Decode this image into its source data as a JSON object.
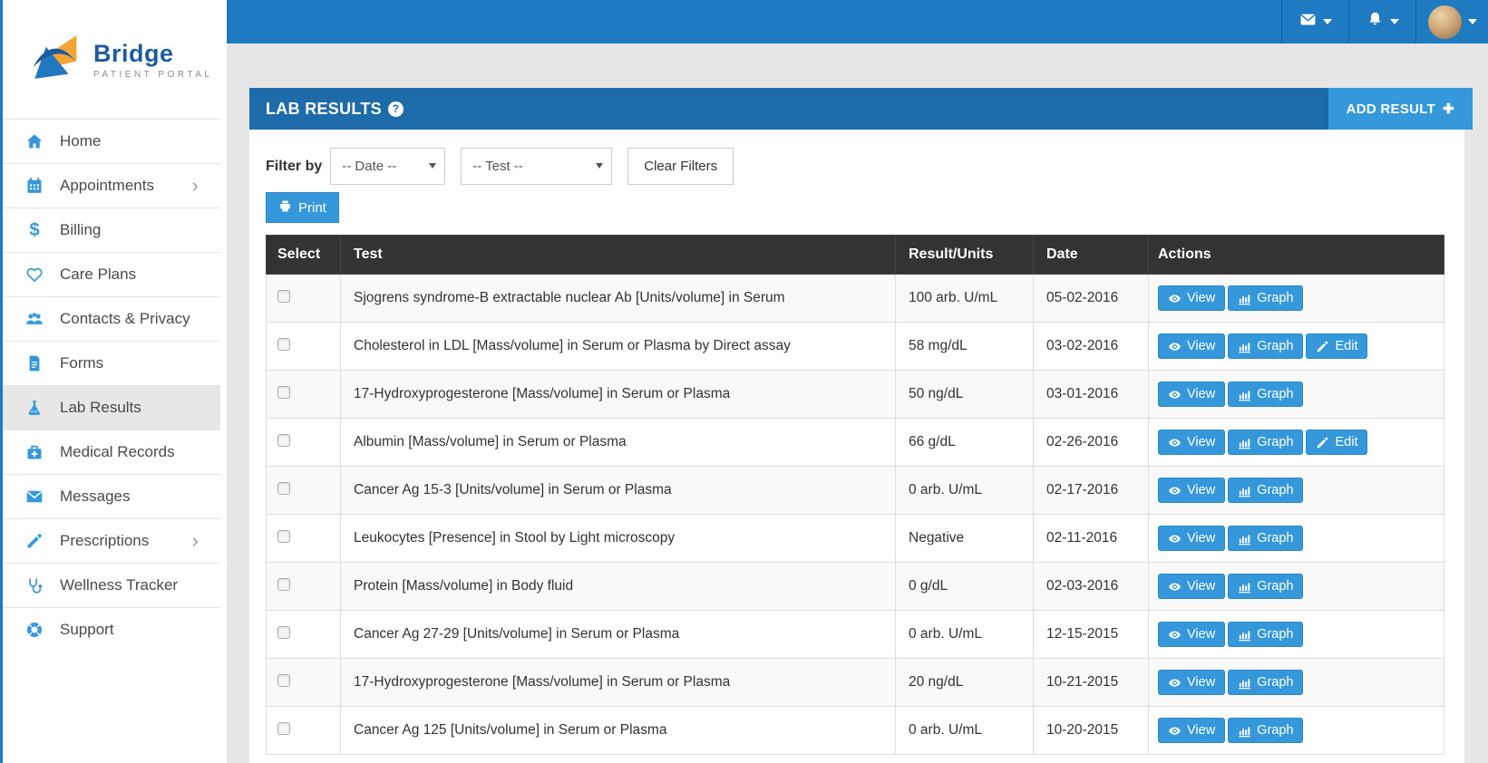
{
  "brand": {
    "name": "Bridge",
    "tagline": "PATIENT PORTAL"
  },
  "topbar": {
    "items": [
      {
        "name": "messages-menu",
        "icon": "envelope-icon"
      },
      {
        "name": "notifications-menu",
        "icon": "bell-icon"
      },
      {
        "name": "profile-menu",
        "icon": "avatar"
      }
    ]
  },
  "sidebar": {
    "items": [
      {
        "label": "Home",
        "icon": "home-icon",
        "active": false,
        "has_submenu": false
      },
      {
        "label": "Appointments",
        "icon": "calendar-icon",
        "active": false,
        "has_submenu": true
      },
      {
        "label": "Billing",
        "icon": "dollar-icon",
        "active": false,
        "has_submenu": false
      },
      {
        "label": "Care Plans",
        "icon": "heart-icon",
        "active": false,
        "has_submenu": false
      },
      {
        "label": "Contacts & Privacy",
        "icon": "users-icon",
        "active": false,
        "has_submenu": false
      },
      {
        "label": "Forms",
        "icon": "document-icon",
        "active": false,
        "has_submenu": false
      },
      {
        "label": "Lab Results",
        "icon": "flask-icon",
        "active": true,
        "has_submenu": false
      },
      {
        "label": "Medical Records",
        "icon": "medical-bag-icon",
        "active": false,
        "has_submenu": false
      },
      {
        "label": "Messages",
        "icon": "envelope-blue-icon",
        "active": false,
        "has_submenu": false
      },
      {
        "label": "Prescriptions",
        "icon": "pencil-icon",
        "active": false,
        "has_submenu": true
      },
      {
        "label": "Wellness Tracker",
        "icon": "stethoscope-icon",
        "active": false,
        "has_submenu": false
      },
      {
        "label": "Support",
        "icon": "life-ring-icon",
        "active": false,
        "has_submenu": false
      }
    ]
  },
  "panel": {
    "title": "LAB RESULTS",
    "help_icon": "?",
    "add_button": "ADD RESULT",
    "filter_label": "Filter by",
    "date_filter_value": "-- Date --",
    "test_filter_value": "-- Test --",
    "clear_button": "Clear Filters",
    "print_button": "Print"
  },
  "table": {
    "headers": [
      "Select",
      "Test",
      "Result/Units",
      "Date",
      "Actions"
    ],
    "action_labels": {
      "view": "View",
      "graph": "Graph",
      "edit": "Edit"
    },
    "rows": [
      {
        "test": "Sjogrens syndrome-B extractable nuclear Ab [Units/volume] in Serum",
        "result": "100 arb. U/mL",
        "date": "05-02-2016",
        "actions": [
          "view",
          "graph"
        ]
      },
      {
        "test": "Cholesterol in LDL [Mass/volume] in Serum or Plasma by Direct assay",
        "result": "58 mg/dL",
        "date": "03-02-2016",
        "actions": [
          "view",
          "graph",
          "edit"
        ]
      },
      {
        "test": "17-Hydroxyprogesterone [Mass/volume] in Serum or Plasma",
        "result": "50 ng/dL",
        "date": "03-01-2016",
        "actions": [
          "view",
          "graph"
        ]
      },
      {
        "test": "Albumin [Mass/volume] in Serum or Plasma",
        "result": "66 g/dL",
        "date": "02-26-2016",
        "actions": [
          "view",
          "graph",
          "edit"
        ]
      },
      {
        "test": "Cancer Ag 15-3 [Units/volume] in Serum or Plasma",
        "result": "0 arb. U/mL",
        "date": "02-17-2016",
        "actions": [
          "view",
          "graph"
        ]
      },
      {
        "test": "Leukocytes [Presence] in Stool by Light microscopy",
        "result": "Negative",
        "date": "02-11-2016",
        "actions": [
          "view",
          "graph"
        ]
      },
      {
        "test": "Protein [Mass/volume] in Body fluid",
        "result": "0 g/dL",
        "date": "02-03-2016",
        "actions": [
          "view",
          "graph"
        ]
      },
      {
        "test": "Cancer Ag 27-29 [Units/volume] in Serum or Plasma",
        "result": "0 arb. U/mL",
        "date": "12-15-2015",
        "actions": [
          "view",
          "graph"
        ]
      },
      {
        "test": "17-Hydroxyprogesterone [Mass/volume] in Serum or Plasma",
        "result": "20 ng/dL",
        "date": "10-21-2015",
        "actions": [
          "view",
          "graph"
        ]
      },
      {
        "test": "Cancer Ag 125 [Units/volume] in Serum or Plasma",
        "result": "0 arb. U/mL",
        "date": "10-20-2015",
        "actions": [
          "view",
          "graph"
        ]
      }
    ]
  },
  "colors": {
    "topbar": "#1e7ac1",
    "panel_header": "#1d6ba9",
    "accent": "#3598db",
    "table_header": "#333333",
    "brand_blue": "#1c5c9d",
    "logo_orange": "#f5a333",
    "logo_blue": "#2178be"
  }
}
